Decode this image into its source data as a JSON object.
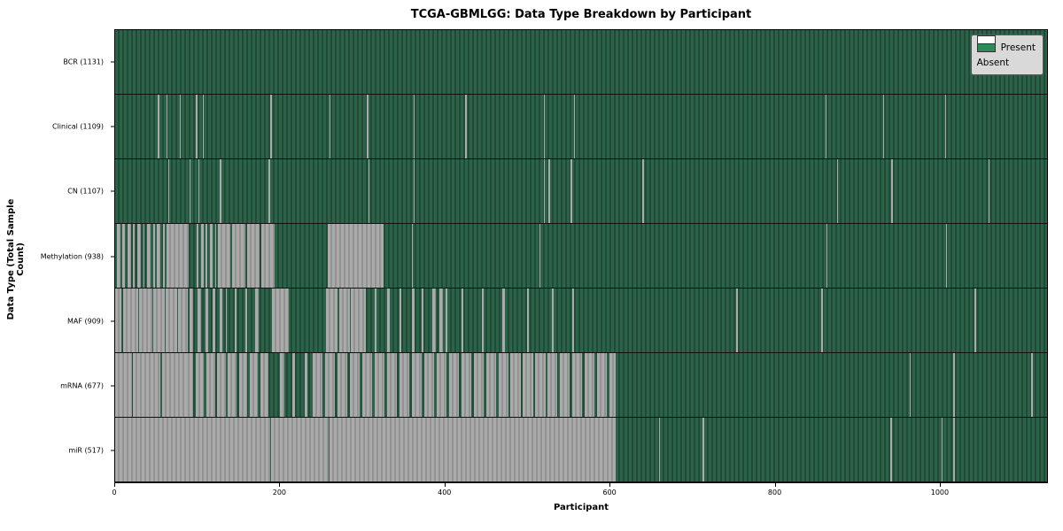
{
  "chart_data": {
    "type": "heatmap",
    "title": "TCGA-GBMLGG: Data Type Breakdown by Participant",
    "xlabel": "Participant",
    "ylabel": "Data Type (Total Sample Count)",
    "x_min": 0,
    "x_max": 1131,
    "x_ticks": [
      0,
      200,
      400,
      600,
      800,
      1000
    ],
    "grid": false,
    "legend_position": "upper right",
    "legend": {
      "present_label": "Present",
      "absent_label": "Absent"
    },
    "colors": {
      "present_base": "#2d624a",
      "present_stripe": "#204b37",
      "absent_base": "#aaaaaa",
      "absent_stripe": "#929292",
      "legend_present": "#2e8b57",
      "legend_absent": "#ffffff",
      "legend_bg": "#d9d9d9",
      "frame": "#000000"
    },
    "rows": [
      {
        "key": "bcr",
        "label": "BCR (1131)",
        "name": "BCR",
        "total": 1131,
        "absent_runs": []
      },
      {
        "key": "clinical",
        "label": "Clinical (1109)",
        "name": "Clinical",
        "total": 1109,
        "absent_runs": [
          [
            52,
            53.5
          ],
          [
            62,
            63.5
          ],
          [
            78,
            79.5
          ],
          [
            98,
            99.5
          ],
          [
            106,
            107.5
          ],
          [
            188,
            190
          ],
          [
            260,
            261.5
          ],
          [
            305,
            307
          ],
          [
            362,
            363.5
          ],
          [
            425,
            426.5
          ],
          [
            520,
            521.5
          ],
          [
            557,
            558.5
          ],
          [
            862,
            863.5
          ],
          [
            932,
            933.5
          ],
          [
            1007,
            1008.5
          ]
        ]
      },
      {
        "key": "cn",
        "label": "CN (1107)",
        "name": "CN",
        "total": 1107,
        "absent_runs": [
          [
            64,
            65.5
          ],
          [
            90,
            91.5
          ],
          [
            101,
            102.5
          ],
          [
            127,
            128.5
          ],
          [
            186,
            188
          ],
          [
            307,
            309
          ],
          [
            362,
            363.5
          ],
          [
            520,
            521.5
          ],
          [
            526,
            527.5
          ],
          [
            553,
            554.5
          ],
          [
            640,
            641.5
          ],
          [
            876,
            877.5
          ],
          [
            942,
            943.5
          ],
          [
            1060,
            1061.5
          ]
        ]
      },
      {
        "key": "methylation",
        "label": "Methylation (938)",
        "name": "Methylation",
        "total": 938,
        "absent_runs": [
          [
            2,
            6
          ],
          [
            9,
            12
          ],
          [
            15,
            19
          ],
          [
            22,
            24
          ],
          [
            27,
            31
          ],
          [
            34,
            36
          ],
          [
            39,
            43
          ],
          [
            46,
            48
          ],
          [
            51,
            55
          ],
          [
            58,
            60
          ],
          [
            62,
            89
          ],
          [
            99,
            101
          ],
          [
            104,
            107
          ],
          [
            110,
            112
          ],
          [
            115,
            118
          ],
          [
            121,
            123
          ],
          [
            125,
            140
          ],
          [
            142,
            158
          ],
          [
            160,
            175
          ],
          [
            177,
            193
          ],
          [
            258,
            326
          ],
          [
            360,
            361.5
          ],
          [
            515,
            516.5
          ],
          [
            863,
            864.5
          ],
          [
            1008,
            1009.5
          ]
        ]
      },
      {
        "key": "maf",
        "label": "MAF (909)",
        "name": "MAF",
        "total": 909,
        "absent_runs": [
          [
            0,
            8
          ],
          [
            9.5,
            28
          ],
          [
            29.5,
            45
          ],
          [
            46.5,
            60
          ],
          [
            61.5,
            75
          ],
          [
            76.5,
            88
          ],
          [
            90,
            95
          ],
          [
            100,
            104
          ],
          [
            110,
            113
          ],
          [
            118,
            121
          ],
          [
            127,
            130
          ],
          [
            134,
            136
          ],
          [
            145,
            147
          ],
          [
            158,
            160
          ],
          [
            170,
            174
          ],
          [
            190,
            211
          ],
          [
            256,
            270
          ],
          [
            271.5,
            285
          ],
          [
            286.5,
            304
          ],
          [
            315,
            317
          ],
          [
            330,
            333
          ],
          [
            345,
            347
          ],
          [
            360,
            363
          ],
          [
            372,
            374
          ],
          [
            385,
            389
          ],
          [
            394,
            398
          ],
          [
            401,
            403
          ],
          [
            420,
            422
          ],
          [
            445,
            447
          ],
          [
            470,
            473
          ],
          [
            500,
            502
          ],
          [
            530,
            532
          ],
          [
            555,
            557
          ],
          [
            754,
            755.5
          ],
          [
            857,
            858.5
          ],
          [
            1043,
            1044.5
          ]
        ]
      },
      {
        "key": "mrna",
        "label": "mRNA (677)",
        "name": "mRNA",
        "total": 677,
        "absent_runs": [
          [
            0,
            20
          ],
          [
            21.5,
            55
          ],
          [
            56.5,
            85
          ],
          [
            85,
            95
          ],
          [
            98,
            108
          ],
          [
            111,
            121
          ],
          [
            124,
            134
          ],
          [
            137,
            147
          ],
          [
            150,
            160
          ],
          [
            163,
            173
          ],
          [
            176,
            186
          ],
          [
            200,
            205
          ],
          [
            215,
            218
          ],
          [
            230,
            233
          ],
          [
            240,
            252
          ],
          [
            255,
            267
          ],
          [
            270,
            282
          ],
          [
            285,
            297
          ],
          [
            300,
            312
          ],
          [
            315,
            327
          ],
          [
            330,
            342
          ],
          [
            345,
            357
          ],
          [
            360,
            372
          ],
          [
            375,
            387
          ],
          [
            390,
            402
          ],
          [
            405,
            417
          ],
          [
            420,
            432
          ],
          [
            435,
            447
          ],
          [
            450,
            462
          ],
          [
            465,
            477
          ],
          [
            480,
            492
          ],
          [
            495,
            507
          ],
          [
            510,
            522
          ],
          [
            525,
            537
          ],
          [
            540,
            552
          ],
          [
            555,
            567
          ],
          [
            570,
            582
          ],
          [
            585,
            597
          ],
          [
            600,
            607
          ],
          [
            964,
            965.5
          ],
          [
            1017,
            1019
          ],
          [
            1112,
            1113.5
          ]
        ]
      },
      {
        "key": "mir",
        "label": "miR (517)",
        "name": "miR",
        "total": 517,
        "absent_runs": [
          [
            0,
            188
          ],
          [
            189.5,
            259
          ],
          [
            260.5,
            607
          ],
          [
            660,
            661.5
          ],
          [
            713,
            714.5
          ],
          [
            941,
            942.5
          ],
          [
            1003,
            1004.5
          ],
          [
            1017,
            1019
          ]
        ]
      }
    ]
  }
}
